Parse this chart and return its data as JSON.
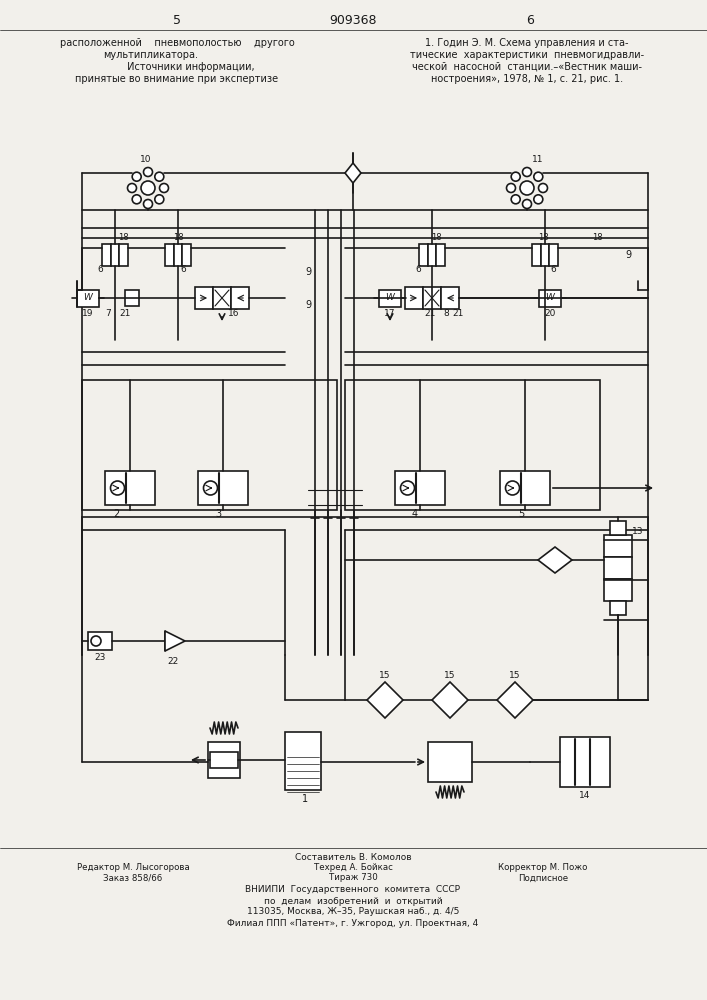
{
  "bg_color": "#f2f0eb",
  "line_color": "#1a1a1a",
  "page_num_left": "5",
  "page_num_center": "909368",
  "page_num_right": "6",
  "top_left_lines": [
    "расположенной    пневмополостью    другого",
    "мультипликатора.",
    "         Источники информации,",
    "принятые во внимание при экспертизе"
  ],
  "top_right_lines": [
    "1. Годин Э. М. Схема управления и ста-",
    "тические  характеристики  пневмогидравли-",
    "ческой  насосной  станции.–«Вестник маши-",
    "ностроения», 1978, № 1, с. 21, рис. 1."
  ],
  "bottom_lines": [
    "Составитель В. Комолов",
    "Редактор М. Лысогорова",
    "Техред А. Бойкас",
    "Корректор М. Пожо",
    "Заказ 858/66",
    "Тираж 730",
    "Подписное",
    "ВНИИПИ  Государственного  комитета  СССР",
    "по  делам  изобретений  и  открытий",
    "113035, Москва, Ж–35, Раушская наб., д. 4/5",
    "Филиал ППП «Патент», г. Ужгород, ул. Проектная, 4"
  ]
}
